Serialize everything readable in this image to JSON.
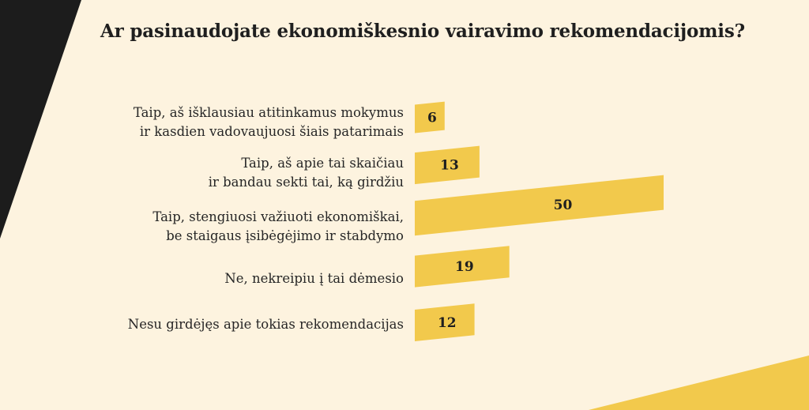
{
  "chart_data": {
    "type": "bar",
    "orientation": "horizontal",
    "title": "Ar pasinaudojate ekonomiškesnio vairavimo rekomendacijomis?",
    "categories": [
      "Taip, aš išklausiau atitinkamus mokymus\nir kasdien vadovaujuosi šiais patarimais",
      "Taip, aš apie tai skaičiau\nir bandau sekti tai, ką girdžiu",
      "Taip, stengiuosi važiuoti ekonomiškai,\nbe staigaus įsibėgėjimo ir stabdymo",
      "Ne, nekreipiu į tai dėmesio",
      "Nesu girdėjęs apie tokias rekomendacijas"
    ],
    "values": [
      6,
      13,
      50,
      19,
      12
    ],
    "data_labels": [
      "6",
      "13",
      "50",
      "19",
      "12"
    ],
    "xlim": [
      0,
      50
    ],
    "grid": false,
    "legend": "none",
    "bar_color": "#f2c94c"
  },
  "colors": {
    "background": "#fdf3df",
    "accent_dark": "#1c1c1c",
    "accent_yellow": "#f2c94c",
    "text": "#262626"
  }
}
